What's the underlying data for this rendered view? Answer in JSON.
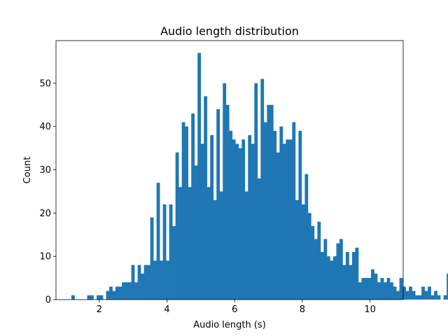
{
  "chart_data": {
    "type": "bar",
    "title": "Audio length distribution",
    "xlabel": "Audio length (s)",
    "ylabel": "Count",
    "xlim": [
      0.72,
      10.98
    ],
    "ylim": [
      0,
      59.85
    ],
    "xticks": [
      2,
      4,
      6,
      8,
      10
    ],
    "yticks": [
      0,
      10,
      20,
      30,
      40,
      50
    ],
    "bar_color": "#1f77b4",
    "grid": false,
    "bin_start": 1.175,
    "bin_width": 0.0932,
    "values": [
      1,
      0,
      0,
      0,
      0,
      1,
      1,
      0,
      1,
      1,
      0,
      2,
      3,
      2,
      3,
      3,
      4,
      4,
      4,
      8,
      4,
      8,
      6,
      8,
      8,
      19,
      9,
      27,
      9,
      22,
      9,
      22,
      17,
      34,
      26,
      41,
      40,
      26,
      43,
      31,
      57,
      36,
      47,
      26,
      38,
      23,
      44,
      25,
      50,
      45,
      39,
      37,
      36,
      35,
      37,
      25,
      38,
      36,
      50,
      28,
      51,
      41,
      45,
      45,
      39,
      34,
      40,
      36,
      37,
      37,
      41,
      23,
      39,
      22,
      29,
      20,
      17,
      14,
      18,
      11,
      14,
      10,
      9,
      10,
      13,
      14,
      8,
      11,
      8,
      11,
      12,
      4,
      5,
      5,
      5,
      7,
      6,
      4,
      5,
      4,
      5,
      4,
      3,
      2,
      5,
      3,
      2,
      3,
      2,
      1,
      1,
      3,
      2,
      3,
      1,
      2,
      1,
      0,
      1,
      6
    ]
  }
}
